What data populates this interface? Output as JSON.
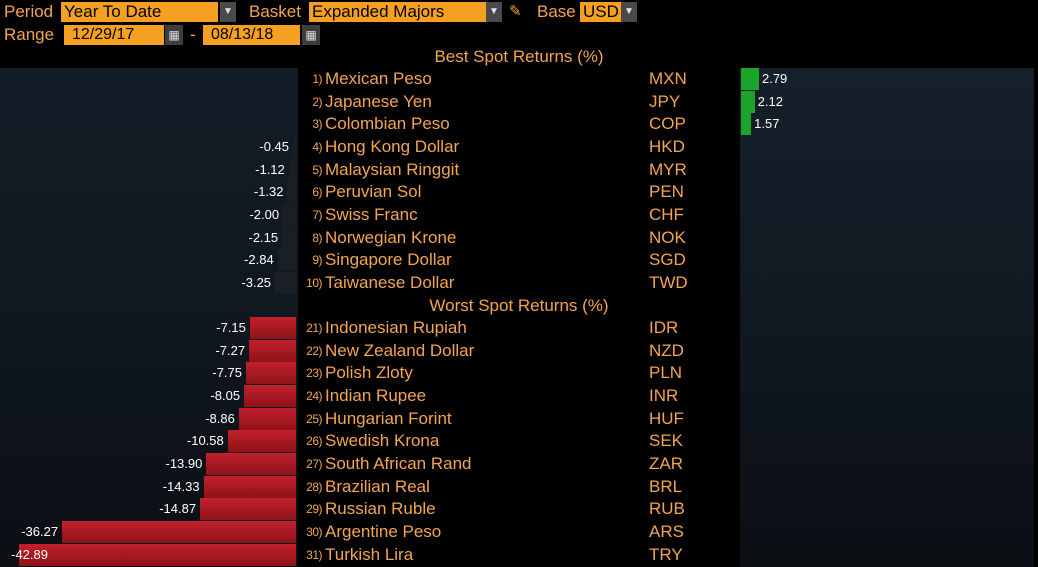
{
  "toolbar": {
    "period_label": "Period",
    "period_value": "Year To Date",
    "basket_label": "Basket",
    "basket_value": "Expanded Majors",
    "base_label": "Base",
    "base_value": "USD",
    "range_label": "Range",
    "range_start": "12/29/17",
    "range_sep": "-",
    "range_end": "08/13/18",
    "dropdown_icon": "chevron-down-icon",
    "calendar_icon": "calendar-icon",
    "edit_icon": "pencil-icon"
  },
  "best": {
    "title": "Best Spot Returns (%)",
    "rows": [
      {
        "rank": "1)",
        "name": "Mexican Peso",
        "code": "MXN",
        "value": "2.79",
        "num": 2.79
      },
      {
        "rank": "2)",
        "name": "Japanese Yen",
        "code": "JPY",
        "value": "2.12",
        "num": 2.12
      },
      {
        "rank": "3)",
        "name": "Colombian Peso",
        "code": "COP",
        "value": "1.57",
        "num": 1.57
      },
      {
        "rank": "4)",
        "name": "Hong Kong Dollar",
        "code": "HKD",
        "value": "-0.45",
        "num": -0.45
      },
      {
        "rank": "5)",
        "name": "Malaysian Ringgit",
        "code": "MYR",
        "value": "-1.12",
        "num": -1.12
      },
      {
        "rank": "6)",
        "name": "Peruvian Sol",
        "code": "PEN",
        "value": "-1.32",
        "num": -1.32
      },
      {
        "rank": "7)",
        "name": "Swiss Franc",
        "code": "CHF",
        "value": "-2.00",
        "num": -2.0
      },
      {
        "rank": "8)",
        "name": "Norwegian Krone",
        "code": "NOK",
        "value": "-2.15",
        "num": -2.15
      },
      {
        "rank": "9)",
        "name": "Singapore Dollar",
        "code": "SGD",
        "value": "-2.84",
        "num": -2.84
      },
      {
        "rank": "10)",
        "name": "Taiwanese Dollar",
        "code": "TWD",
        "value": "-3.25",
        "num": -3.25
      }
    ]
  },
  "worst": {
    "title": "Worst Spot Returns (%)",
    "rows": [
      {
        "rank": "21)",
        "name": "Indonesian Rupiah",
        "code": "IDR",
        "value": "-7.15",
        "num": -7.15
      },
      {
        "rank": "22)",
        "name": "New Zealand Dollar",
        "code": "NZD",
        "value": "-7.27",
        "num": -7.27
      },
      {
        "rank": "23)",
        "name": "Polish Zloty",
        "code": "PLN",
        "value": "-7.75",
        "num": -7.75
      },
      {
        "rank": "24)",
        "name": "Indian Rupee",
        "code": "INR",
        "value": "-8.05",
        "num": -8.05
      },
      {
        "rank": "25)",
        "name": "Hungarian Forint",
        "code": "HUF",
        "value": "-8.86",
        "num": -8.86
      },
      {
        "rank": "26)",
        "name": "Swedish Krona",
        "code": "SEK",
        "value": "-10.58",
        "num": -10.58
      },
      {
        "rank": "27)",
        "name": "South African Rand",
        "code": "ZAR",
        "value": "-13.90",
        "num": -13.9
      },
      {
        "rank": "28)",
        "name": "Brazilian Real",
        "code": "BRL",
        "value": "-14.33",
        "num": -14.33
      },
      {
        "rank": "29)",
        "name": "Russian Ruble",
        "code": "RUB",
        "value": "-14.87",
        "num": -14.87
      },
      {
        "rank": "30)",
        "name": "Argentine Peso",
        "code": "ARS",
        "value": "-36.27",
        "num": -36.27
      },
      {
        "rank": "31)",
        "name": "Turkish Lira",
        "code": "TRY",
        "value": "-42.89",
        "num": -42.89
      }
    ]
  },
  "colors": {
    "accent": "#f3a552",
    "field_bg": "#f6a021",
    "negative_bar": "#c3202b",
    "positive_bar": "#1aa52a"
  }
}
